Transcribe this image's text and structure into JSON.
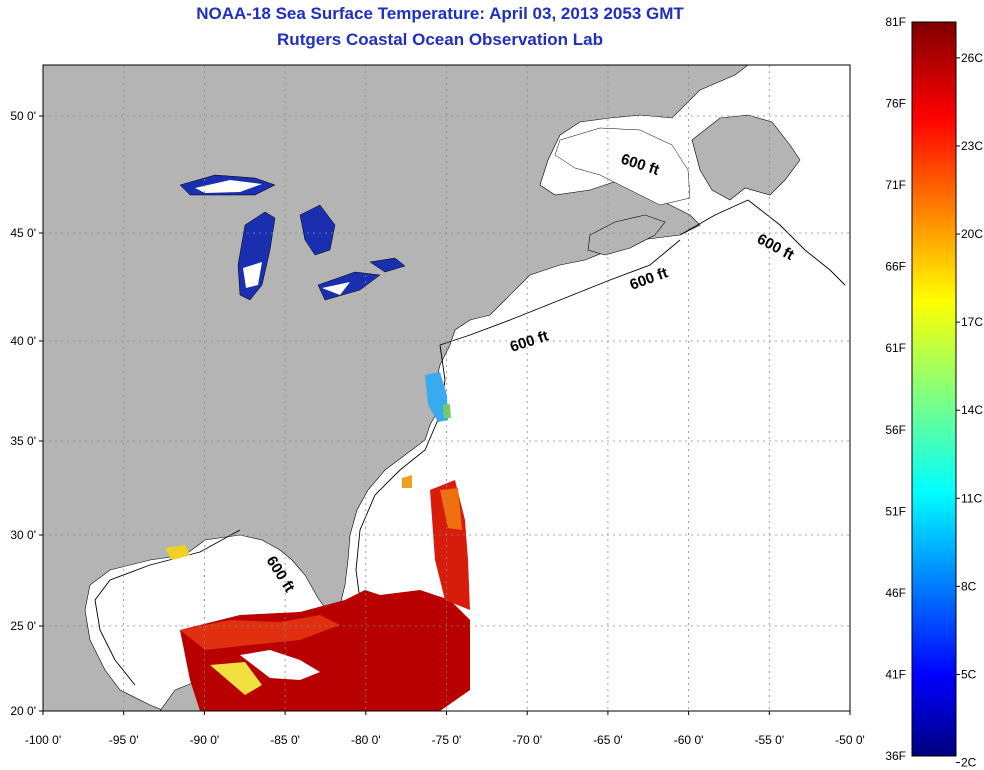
{
  "title": {
    "line1": "NOAA-18 Sea Surface Temperature:  April 03, 2013 2053 GMT",
    "line2": "Rutgers Coastal Ocean Observation Lab"
  },
  "map": {
    "lon_ticks": [
      "-100 0'",
      "-95 0'",
      "-90 0'",
      "-85 0'",
      "-80 0'",
      "-75 0'",
      "-70 0'",
      "-65 0'",
      "-60 0'",
      "-55 0'",
      "-50 0'"
    ],
    "lat_ticks": [
      "50 0'",
      "45 0'",
      "40 0'",
      "35 0'",
      "30 0'",
      "25 0'",
      "20 0'"
    ],
    "contour_labels": [
      "600 ft",
      "600 ft",
      "600 ft",
      "600 ft",
      "600 ft"
    ],
    "colors": {
      "land": "#b4b4b4",
      "ocean": "#ffffff",
      "lakes": "#1a2fb0",
      "grid": "#888888"
    }
  },
  "colorbar": {
    "fahrenheit": [
      "81F",
      "76F",
      "71F",
      "66F",
      "61F",
      "56F",
      "51F",
      "46F",
      "41F",
      "36F"
    ],
    "celsius": [
      "26C",
      "23C",
      "20C",
      "17C",
      "14C",
      "11C",
      "8C",
      "5C",
      "2C"
    ]
  }
}
